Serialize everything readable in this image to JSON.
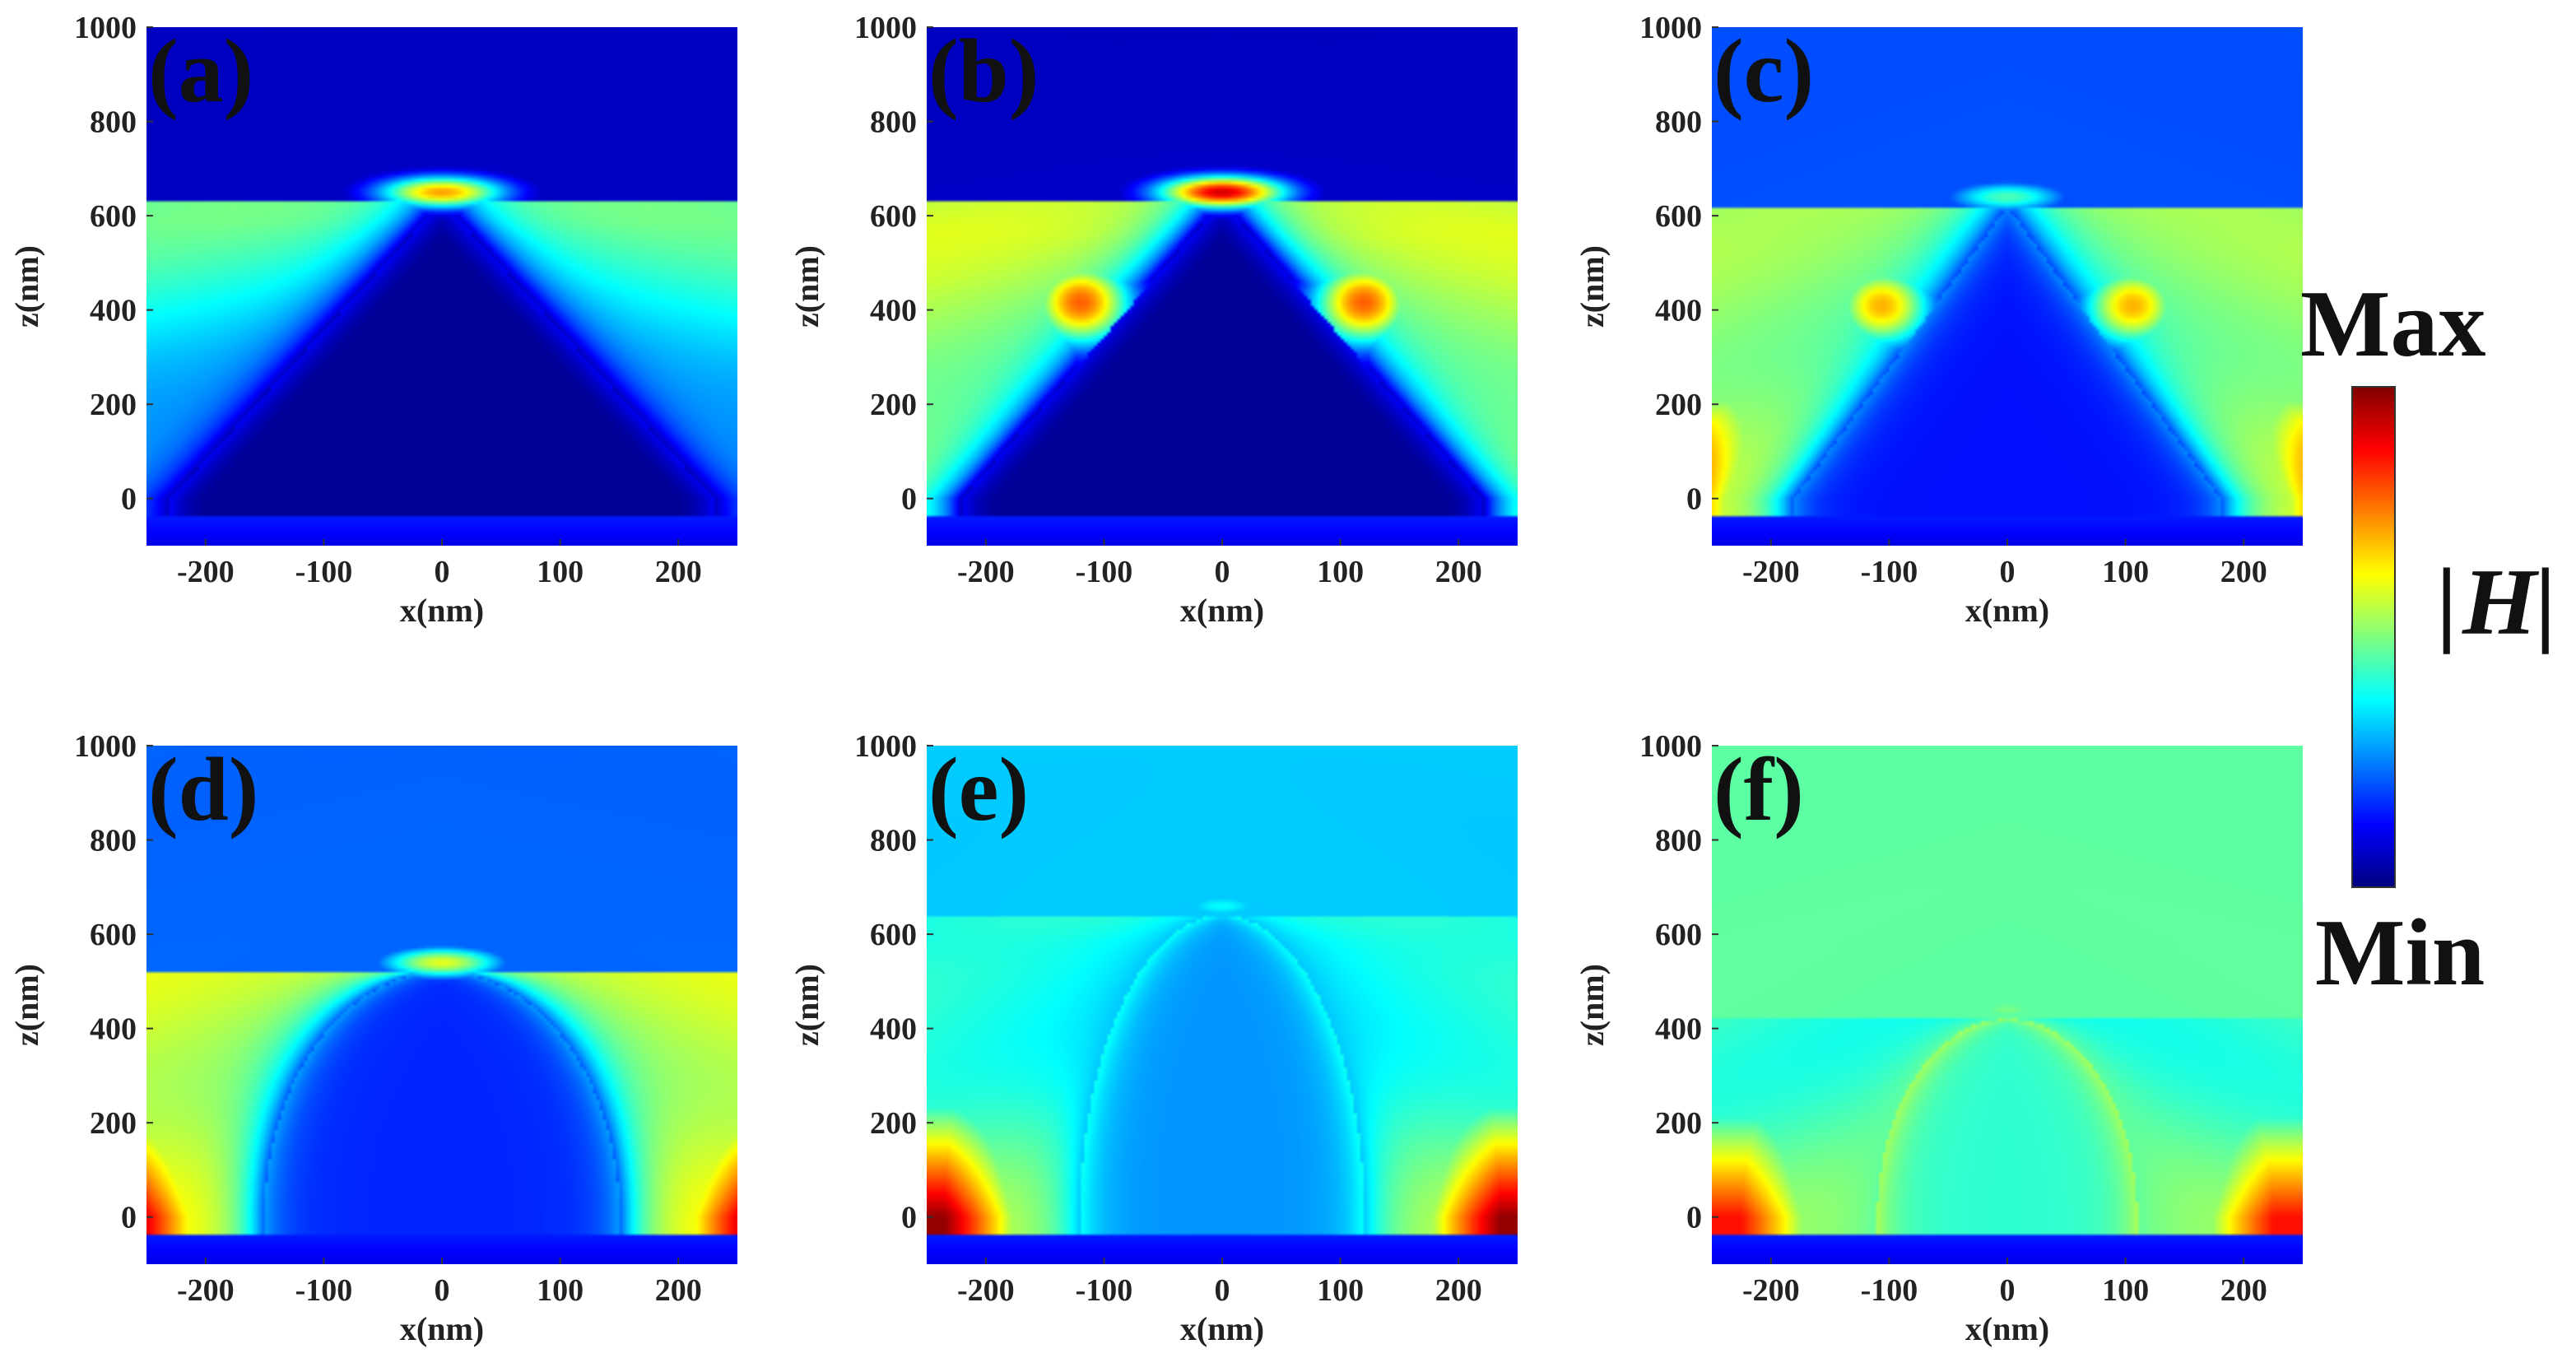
{
  "figure": {
    "colormap": "jet",
    "colorbar": {
      "max_label": "Max",
      "min_label": "Min",
      "quantity": "|H|",
      "quantity_symbol": "H",
      "bar_char": "|"
    }
  },
  "chart_data": [
    {
      "type": "heatmap",
      "panel_label": "(a)",
      "xlabel": "x(nm)",
      "ylabel": "z(nm)",
      "xlim": [
        -250,
        250
      ],
      "ylim": [
        -100,
        1000
      ],
      "xticks": [
        -200,
        -100,
        0,
        100,
        200
      ],
      "yticks": [
        0,
        200,
        400,
        600,
        800,
        1000
      ],
      "structure": {
        "shape": "cone",
        "apex_z": 630,
        "base_halfwidth_at_z0": 230
      },
      "field": {
        "side_level": 0.22,
        "mid_level": 0.45,
        "top_level": 0.47,
        "hotspot_level": 0.0,
        "apex_level": 0.72,
        "flank_level": 0.0,
        "inner_level": 0.0
      }
    },
    {
      "type": "heatmap",
      "panel_label": "(b)",
      "xlabel": "x(nm)",
      "ylabel": "z(nm)",
      "xlim": [
        -250,
        250
      ],
      "ylim": [
        -100,
        1000
      ],
      "xticks": [
        -200,
        -100,
        0,
        100,
        200
      ],
      "yticks": [
        0,
        200,
        400,
        600,
        800,
        1000
      ],
      "structure": {
        "shape": "cone",
        "apex_z": 630,
        "base_halfwidth_at_z0": 220
      },
      "field": {
        "side_level": 0.5,
        "mid_level": 0.56,
        "top_level": 0.42,
        "hotspot_level": 0.88,
        "apex_level": 0.92,
        "flank_level": 0.78,
        "inner_level": 0.0
      }
    },
    {
      "type": "heatmap",
      "panel_label": "(c)",
      "xlabel": "x(nm)",
      "ylabel": "z(nm)",
      "xlim": [
        -250,
        250
      ],
      "ylim": [
        -100,
        1000
      ],
      "xticks": [
        -200,
        -100,
        0,
        100,
        200
      ],
      "yticks": [
        0,
        200,
        400,
        600,
        800,
        1000
      ],
      "structure": {
        "shape": "cone",
        "apex_z": 620,
        "base_halfwidth_at_z0": 180
      },
      "field": {
        "side_level": 0.58,
        "mid_level": 0.5,
        "top_level": 0.52,
        "hotspot_level": 1.0,
        "apex_level": 0.45,
        "flank_level": 0.7,
        "inner_level": 0.14
      }
    },
    {
      "type": "heatmap",
      "panel_label": "(d)",
      "xlabel": "x(nm)",
      "ylabel": "z(nm)",
      "xlim": [
        -250,
        250
      ],
      "ylim": [
        -100,
        1000
      ],
      "xticks": [
        -200,
        -100,
        0,
        100,
        200
      ],
      "yticks": [
        0,
        200,
        400,
        600,
        800,
        1000
      ],
      "structure": {
        "shape": "dome",
        "apex_z": 520,
        "base_halfwidth_at_z0": 150
      },
      "field": {
        "side_level": 0.62,
        "mid_level": 0.56,
        "top_level": 0.5,
        "hotspot_level": 1.0,
        "apex_level": 0.6,
        "flank_level": 0.0,
        "inner_level": 0.16
      }
    },
    {
      "type": "heatmap",
      "panel_label": "(e)",
      "xlabel": "x(nm)",
      "ylabel": "z(nm)",
      "xlim": [
        -250,
        250
      ],
      "ylim": [
        -100,
        1000
      ],
      "xticks": [
        -200,
        -100,
        0,
        100,
        200
      ],
      "yticks": [
        0,
        200,
        400,
        600,
        800,
        1000
      ],
      "structure": {
        "shape": "dome",
        "apex_z": 640,
        "base_halfwidth_at_z0": 120
      },
      "field": {
        "side_level": 0.55,
        "mid_level": 0.36,
        "top_level": 0.46,
        "hotspot_level": 0.98,
        "apex_level": 0.38,
        "flank_level": 0.0,
        "inner_level": 0.27
      }
    },
    {
      "type": "heatmap",
      "panel_label": "(f)",
      "xlabel": "x(nm)",
      "ylabel": "z(nm)",
      "xlim": [
        -250,
        250
      ],
      "ylim": [
        -100,
        1000
      ],
      "xticks": [
        -200,
        -100,
        0,
        100,
        200
      ],
      "yticks": [
        0,
        200,
        400,
        600,
        800,
        1000
      ],
      "structure": {
        "shape": "dome",
        "apex_z": 420,
        "base_halfwidth_at_z0": 110
      },
      "field": {
        "side_level": 0.5,
        "mid_level": 0.4,
        "top_level": 0.38,
        "hotspot_level": 0.86,
        "apex_level": 0.5,
        "flank_level": 0.0,
        "inner_level": 0.42
      }
    }
  ]
}
